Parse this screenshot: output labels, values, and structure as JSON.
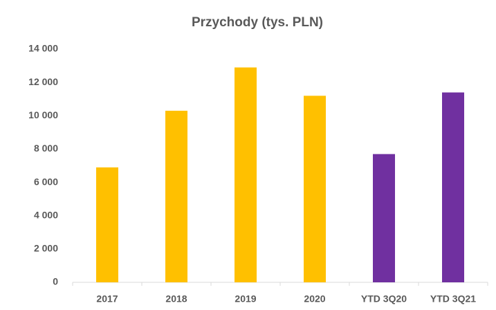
{
  "chart_data": {
    "type": "bar",
    "title": "Przychody (tys. PLN)",
    "categories": [
      "2017",
      "2018",
      "2019",
      "2020",
      "YTD 3Q20",
      "YTD 3Q21"
    ],
    "values": [
      6900,
      10300,
      12900,
      11200,
      7700,
      11400
    ],
    "colors": [
      "#ffc000",
      "#ffc000",
      "#ffc000",
      "#ffc000",
      "#7030a0",
      "#7030a0"
    ],
    "ylim": [
      0,
      14000
    ],
    "yticks": [
      0,
      {
        "value": 2000,
        "label": "2 000"
      },
      {
        "value": 4000,
        "label": "4 000"
      },
      {
        "value": 6000,
        "label": "6 000"
      },
      {
        "value": 8000,
        "label": "8 000"
      },
      {
        "value": 10000,
        "label": "10 000"
      },
      {
        "value": 12000,
        "label": "12 000"
      },
      {
        "value": 14000,
        "label": "14 000"
      }
    ],
    "grid": false
  }
}
